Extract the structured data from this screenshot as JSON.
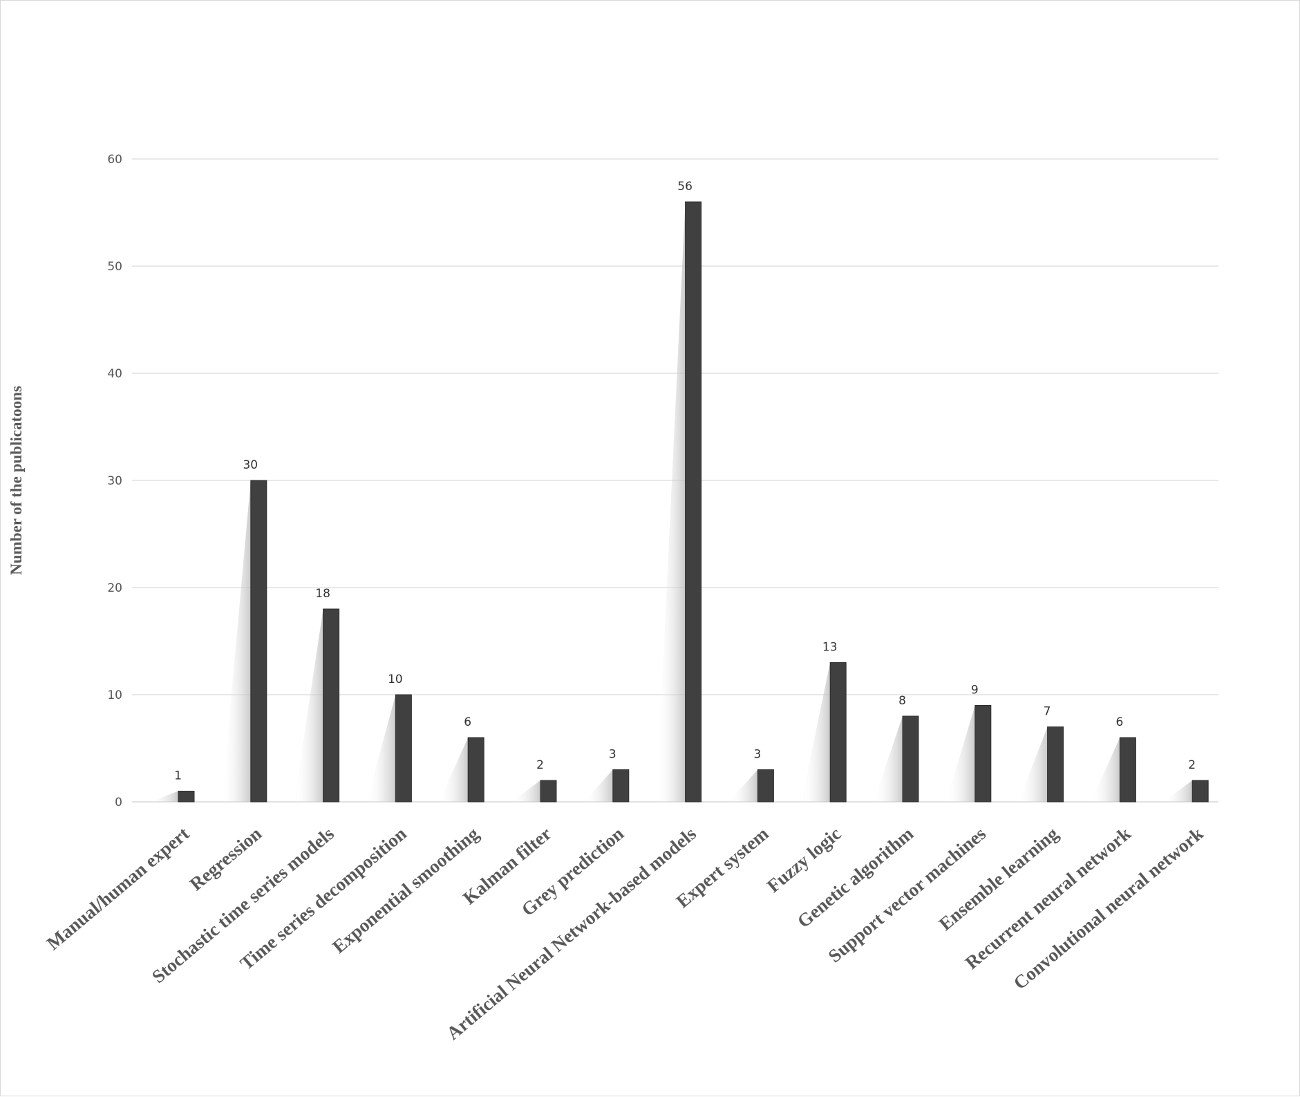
{
  "chart_data": {
    "type": "bar",
    "ylabel": "Number of the publicatoons",
    "xlabel": "",
    "ylim": [
      0,
      60
    ],
    "yticks": [
      "0",
      "10",
      "20",
      "30",
      "40",
      "50",
      "60"
    ],
    "grid": true,
    "legend": "none",
    "categories": [
      "Manual/human expert",
      "Regression",
      "Stochastic time series models",
      "Time series decomposition",
      "Exponential smoothing",
      "Kalman filter",
      "Grey prediction",
      "Artificial Neural Network-based models",
      "Expert system",
      "Fuzzy logic",
      "Genetic algorithm",
      "Support vector machines",
      "Ensemble learning",
      "Recurrent neural network",
      "Convolutional neural network"
    ],
    "values": [
      1,
      30,
      18,
      10,
      6,
      2,
      3,
      56,
      3,
      13,
      8,
      9,
      7,
      6,
      2
    ],
    "data_labels": [
      "1",
      "30",
      "18",
      "10",
      "6",
      "2",
      "3",
      "56",
      "3",
      "13",
      "8",
      "9",
      "7",
      "6",
      "2"
    ],
    "colors": {
      "bar": "#404040",
      "bar_edge": "#2f2f2f",
      "grid": "#d9d9d9",
      "shadow": "#bfbfbf"
    }
  }
}
